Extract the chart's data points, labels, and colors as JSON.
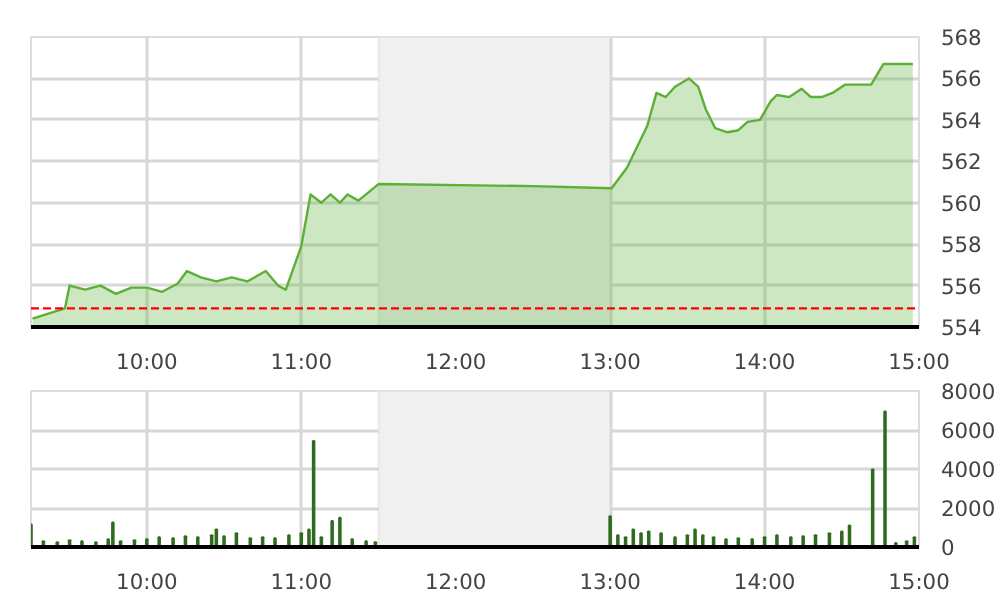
{
  "chart_data": [
    {
      "type": "area",
      "color": "#5cb038",
      "x": [
        9.26,
        9.47,
        9.5,
        9.6,
        9.7,
        9.8,
        9.9,
        10.0,
        10.1,
        10.2,
        10.26,
        10.35,
        10.45,
        10.55,
        10.65,
        10.77,
        10.85,
        10.9,
        11.0,
        11.06,
        11.13,
        11.19,
        11.25,
        11.3,
        11.37,
        11.5,
        12.5,
        13.01,
        13.11,
        13.24,
        13.3,
        13.36,
        13.42,
        13.51,
        13.57,
        13.62,
        13.68,
        13.76,
        13.83,
        13.89,
        13.97,
        14.04,
        14.08,
        14.16,
        14.24,
        14.3,
        14.37,
        14.44,
        14.52,
        14.69,
        14.77,
        14.96
      ],
      "values": [
        554.4,
        554.9,
        556.0,
        555.8,
        556.0,
        555.6,
        555.9,
        555.9,
        555.7,
        556.1,
        556.7,
        556.4,
        556.2,
        556.4,
        556.2,
        556.7,
        556.0,
        555.8,
        557.9,
        560.4,
        560.0,
        560.4,
        560.0,
        560.4,
        560.1,
        560.9,
        560.8,
        560.7,
        561.7,
        563.7,
        565.3,
        565.1,
        565.6,
        566.0,
        565.6,
        564.5,
        563.6,
        563.4,
        563.5,
        563.9,
        564.0,
        564.9,
        565.2,
        565.1,
        565.5,
        565.1,
        565.1,
        565.3,
        565.7,
        565.7,
        566.7,
        566.7
      ],
      "xlim": [
        9.25,
        15
      ],
      "ylim": [
        554,
        568
      ],
      "yticks": [
        554,
        556,
        558,
        560,
        562,
        564,
        566,
        568
      ],
      "xticks": [
        {
          "value": 10,
          "label": "10:00"
        },
        {
          "value": 11,
          "label": "11:00"
        },
        {
          "value": 12,
          "label": "12:00"
        },
        {
          "value": 13,
          "label": "13:00"
        },
        {
          "value": 14,
          "label": "14:00"
        },
        {
          "value": 15,
          "label": "15:00"
        }
      ],
      "grid": true,
      "ref_lines": [
        {
          "axis": "y",
          "value": 554.9,
          "color": "#ff0000",
          "line_style": "dashed"
        }
      ],
      "bands": [
        {
          "axis": "x",
          "from": 11.5,
          "to": 13,
          "color": "#f0f0f0"
        }
      ]
    },
    {
      "type": "bar",
      "color": "#2e6b1f",
      "x": [
        9.25,
        9.33,
        9.42,
        9.5,
        9.58,
        9.67,
        9.75,
        9.78,
        9.83,
        9.92,
        10.0,
        10.08,
        10.17,
        10.25,
        10.33,
        10.42,
        10.45,
        10.5,
        10.58,
        10.67,
        10.75,
        10.83,
        10.92,
        11.0,
        11.05,
        11.08,
        11.13,
        11.2,
        11.25,
        11.33,
        11.42,
        11.48,
        13.0,
        13.05,
        13.1,
        13.15,
        13.2,
        13.25,
        13.33,
        13.42,
        13.5,
        13.55,
        13.6,
        13.67,
        13.75,
        13.83,
        13.92,
        14.0,
        14.08,
        14.17,
        14.25,
        14.33,
        14.42,
        14.5,
        14.55,
        14.7,
        14.78,
        14.85,
        14.92,
        14.97
      ],
      "values": [
        1160,
        300,
        250,
        350,
        300,
        250,
        400,
        1260,
        300,
        350,
        400,
        500,
        450,
        550,
        500,
        600,
        900,
        550,
        700,
        450,
        500,
        450,
        600,
        700,
        900,
        5440,
        500,
        1330,
        1500,
        400,
        300,
        250,
        1580,
        600,
        500,
        900,
        700,
        800,
        700,
        500,
        600,
        900,
        600,
        500,
        400,
        450,
        400,
        500,
        600,
        500,
        550,
        600,
        700,
        800,
        1100,
        3970,
        6950,
        200,
        300,
        500
      ],
      "xlim": [
        9.25,
        15
      ],
      "ylim": [
        0,
        8000
      ],
      "yticks": [
        0,
        2000,
        4000,
        6000,
        8000
      ],
      "xticks": [
        {
          "value": 10,
          "label": "10:00"
        },
        {
          "value": 11,
          "label": "11:00"
        },
        {
          "value": 12,
          "label": "12:00"
        },
        {
          "value": 13,
          "label": "13:00"
        },
        {
          "value": 14,
          "label": "14:00"
        },
        {
          "value": 15,
          "label": "15:00"
        }
      ],
      "grid": true,
      "bands": [
        {
          "axis": "x",
          "from": 11.5,
          "to": 13,
          "color": "#f0f0f0"
        }
      ]
    }
  ]
}
